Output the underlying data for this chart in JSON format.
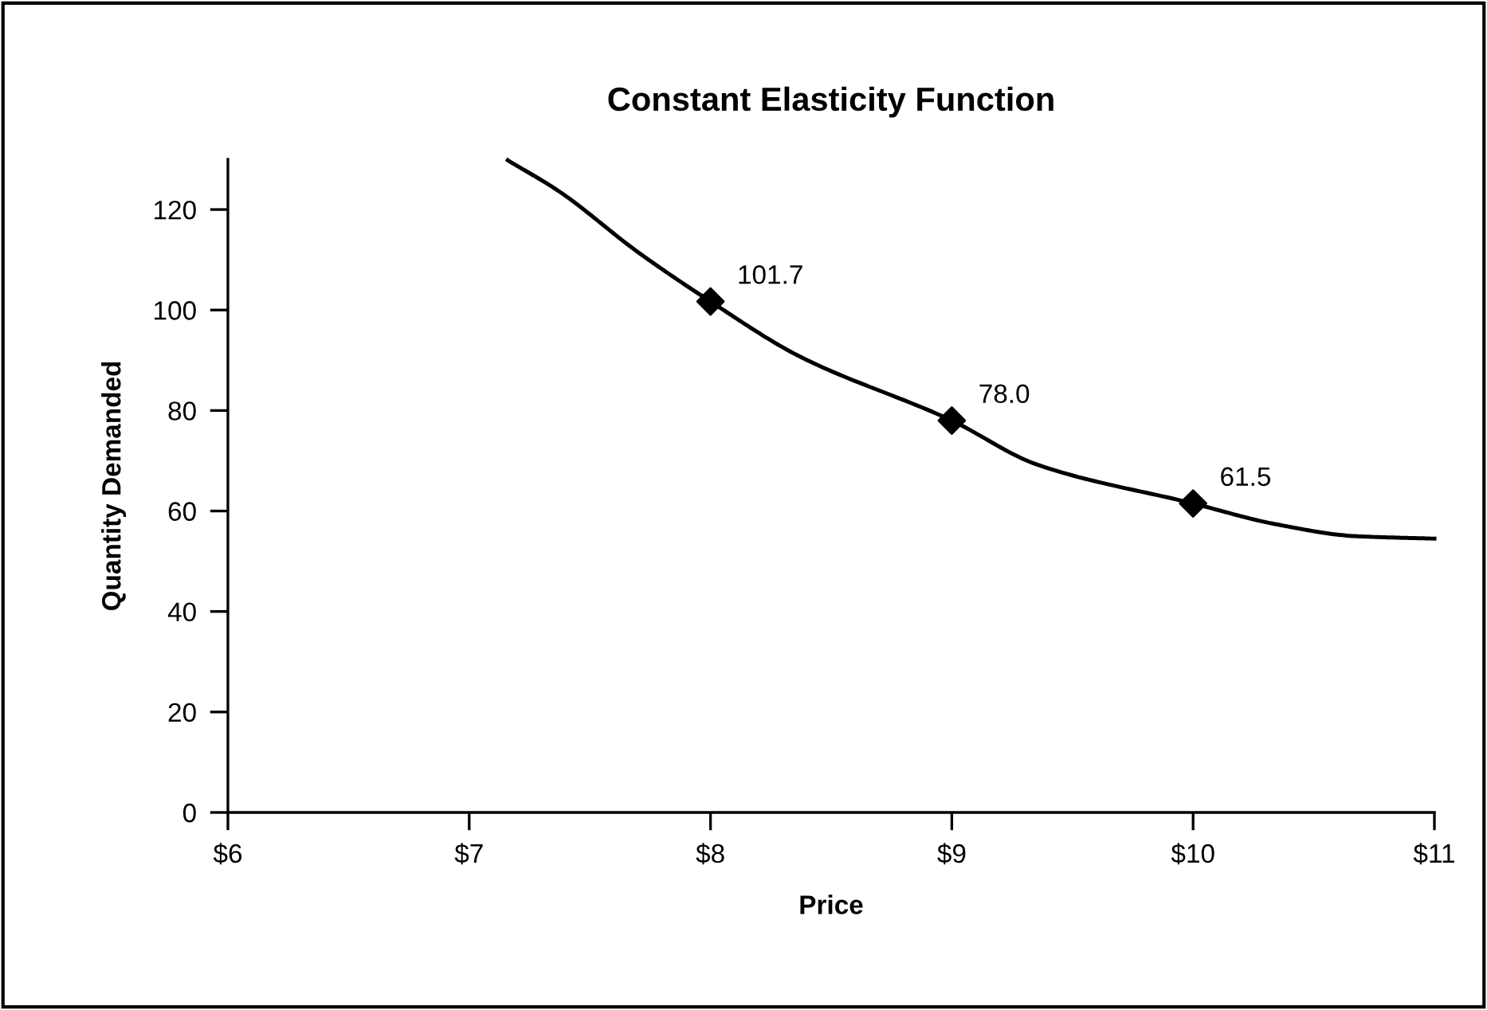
{
  "chart_data": {
    "type": "line",
    "title": "Constant Elasticity Function",
    "xlabel": "Price",
    "ylabel": "Quantity Demanded",
    "xlim": [
      6,
      11
    ],
    "ylim": [
      0,
      130
    ],
    "xticks": [
      {
        "value": 6,
        "label": "$6"
      },
      {
        "value": 7,
        "label": "$7"
      },
      {
        "value": 8,
        "label": "$8"
      },
      {
        "value": 9,
        "label": "$9"
      },
      {
        "value": 10,
        "label": "$10"
      },
      {
        "value": 11,
        "label": "$11"
      }
    ],
    "yticks": [
      0,
      20,
      40,
      60,
      80,
      100,
      120
    ],
    "grid": false,
    "legend": false,
    "series": [
      {
        "color": "#000000",
        "marker": "none",
        "line_style": "solid",
        "x": [
          7.16,
          7.37,
          7.7,
          8,
          8.36,
          9,
          9.35,
          10,
          10.34,
          10.67,
          11
        ],
        "values": [
          129.8,
          123.7,
          111.5,
          101.7,
          91,
          78,
          69.3,
          61.5,
          57.4,
          55,
          54.5
        ]
      },
      {
        "type": "scatter",
        "color": "#000000",
        "marker": "diamond",
        "x": [
          8,
          9,
          10
        ],
        "values": [
          101.7,
          78.0,
          61.5
        ],
        "value_labels": [
          "101.7",
          "78.0",
          "61.5"
        ]
      }
    ]
  }
}
